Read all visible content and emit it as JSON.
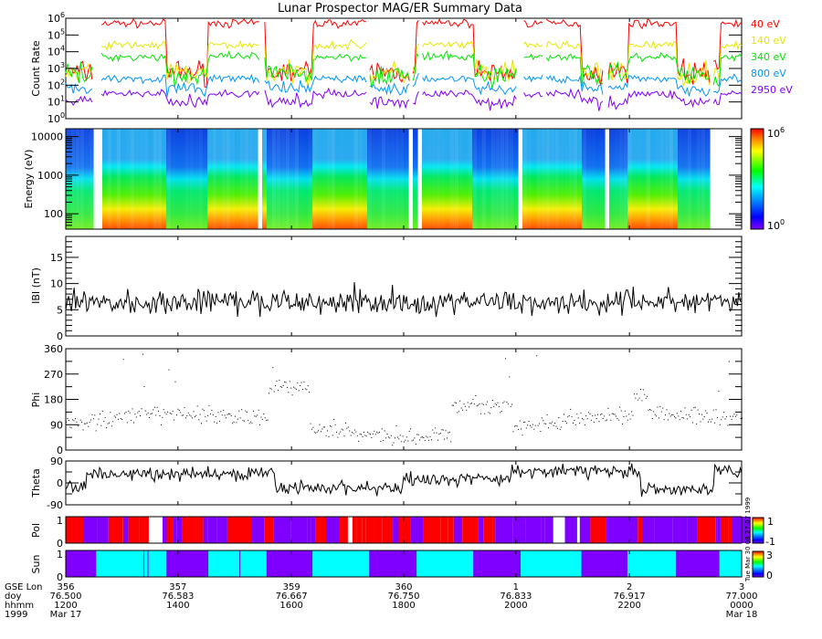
{
  "title": "Lunar Prospector MAG/ER Summary Data",
  "timestamp_vertical": "Tue Mar 30 08:27:07 1999",
  "colors": {
    "e40": "#ff0000",
    "e140": "#e6e600",
    "e340": "#00e600",
    "e800": "#0096ff",
    "e2950": "#8000ff",
    "pol_pos": "#ff0000",
    "pol_neg": "#8000ff",
    "sun_yes": "#00ffff",
    "sun_no": "#8000ff"
  },
  "chart_data": [
    {
      "type": "line",
      "panel": "count-rate",
      "ylabel": "Count Rate",
      "yscale": "log",
      "ylim": [
        1,
        1000000
      ],
      "yticks": [
        {
          "base": "10",
          "exp": "0"
        },
        {
          "base": "10",
          "exp": "1"
        },
        {
          "base": "10",
          "exp": "2"
        },
        {
          "base": "10",
          "exp": "3"
        },
        {
          "base": "10",
          "exp": "4"
        },
        {
          "base": "10",
          "exp": "5"
        },
        {
          "base": "10",
          "exp": "6"
        }
      ],
      "legend_placement": "right",
      "series": [
        {
          "name": "40 eV",
          "key": "e40",
          "day_level": 500000,
          "night_level": 600
        },
        {
          "name": "140 eV",
          "key": "e140",
          "day_level": 25000,
          "night_level": 500
        },
        {
          "name": "340 eV",
          "key": "e340",
          "day_level": 5000,
          "night_level": 400
        },
        {
          "name": "800 eV",
          "key": "e800",
          "day_level": 250,
          "night_level": 60
        },
        {
          "name": "2950 eV",
          "key": "e2950",
          "day_level": 30,
          "night_level": 10
        }
      ]
    },
    {
      "type": "heatmap",
      "panel": "spectrogram",
      "ylabel": "Energy (eV)",
      "yscale": "log",
      "ylim": [
        40,
        16000
      ],
      "yticks": [
        "100",
        "1000",
        "10000"
      ],
      "colorbar": {
        "min": {
          "base": "10",
          "exp": "0"
        },
        "max": {
          "base": "10",
          "exp": "6"
        }
      }
    },
    {
      "type": "line",
      "panel": "b-magnitude",
      "ylabel": "IBI (nT)",
      "ylim": [
        0,
        19
      ],
      "yticks": [
        "0",
        "5",
        "10",
        "15"
      ],
      "mean": 6.5
    },
    {
      "type": "scatter",
      "panel": "phi",
      "ylabel": "Phi",
      "ylim": [
        0,
        360
      ],
      "yticks": [
        "0",
        "90",
        "180",
        "270",
        "360"
      ]
    },
    {
      "type": "line",
      "panel": "theta",
      "ylabel": "Theta",
      "ylim": [
        -90,
        90
      ],
      "yticks": [
        "-90",
        "0",
        "90"
      ]
    },
    {
      "type": "heatmap",
      "panel": "pol",
      "ylabel": "Pol",
      "ylim": [
        0,
        1
      ],
      "yticks": [
        "0",
        "1"
      ],
      "colorbar": {
        "min": "-1",
        "max": "1"
      }
    },
    {
      "type": "heatmap",
      "panel": "sun",
      "ylabel": "Sun",
      "ylim": [
        0,
        1
      ],
      "yticks": [
        "0",
        "1"
      ],
      "colorbar": {
        "min": "0",
        "max": "3"
      }
    }
  ],
  "xaxis": {
    "row_labels": [
      "GSE Lon",
      "doy",
      "hhmm",
      "1999"
    ],
    "xlim": [
      76.5,
      77.0
    ],
    "ticks": [
      {
        "lon": "356",
        "doy": "76.500",
        "hhmm": "1200",
        "date": "Mar 17"
      },
      {
        "lon": "357",
        "doy": "76.583",
        "hhmm": "1400",
        "date": ""
      },
      {
        "lon": "359",
        "doy": "76.667",
        "hhmm": "1600",
        "date": ""
      },
      {
        "lon": "360",
        "doy": "76.750",
        "hhmm": "1800",
        "date": ""
      },
      {
        "lon": "1",
        "doy": "76.833",
        "hhmm": "2000",
        "date": ""
      },
      {
        "lon": "2",
        "doy": "76.917",
        "hhmm": "2200",
        "date": ""
      },
      {
        "lon": "3",
        "doy": "77.000",
        "hhmm": "0000",
        "date": "Mar 18"
      }
    ]
  },
  "sun_segments": [
    {
      "from": 76.5,
      "to": 76.5225,
      "v": 0
    },
    {
      "from": 76.5225,
      "to": 76.5745,
      "v": 1
    },
    {
      "from": 76.5745,
      "to": 76.6055,
      "v": 0
    },
    {
      "from": 76.6055,
      "to": 76.6485,
      "v": 1
    },
    {
      "from": 76.6485,
      "to": 76.6825,
      "v": 0
    },
    {
      "from": 76.6825,
      "to": 76.7245,
      "v": 1
    },
    {
      "from": 76.7245,
      "to": 76.7595,
      "v": 0
    },
    {
      "from": 76.7595,
      "to": 76.8015,
      "v": 1
    },
    {
      "from": 76.8015,
      "to": 76.8365,
      "v": 0
    },
    {
      "from": 76.8365,
      "to": 76.8815,
      "v": 1
    },
    {
      "from": 76.8815,
      "to": 76.9155,
      "v": 0
    },
    {
      "from": 76.9155,
      "to": 76.9515,
      "v": 1
    },
    {
      "from": 76.9515,
      "to": 76.9835,
      "v": 0
    },
    {
      "from": 76.9835,
      "to": 77.0,
      "v": 1
    }
  ]
}
